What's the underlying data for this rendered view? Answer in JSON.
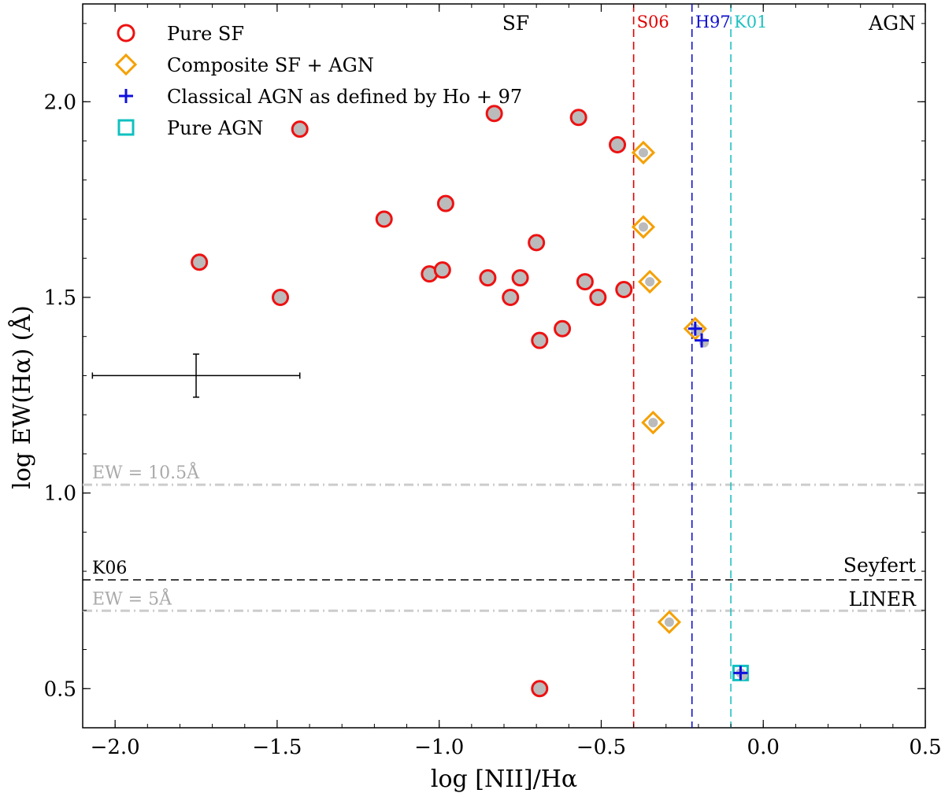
{
  "chart_data": {
    "type": "scatter",
    "xlabel": "log [NII]/Hα",
    "ylabel": "log EW(Hα) (Å)",
    "xlim": [
      -2.1,
      0.5
    ],
    "ylim": [
      0.4,
      2.25
    ],
    "xticks": [
      -2.0,
      -1.5,
      -1.0,
      -0.5,
      0.0,
      0.5
    ],
    "xtick_labels": [
      "−2.0",
      "−1.5",
      "−1.0",
      "−0.5",
      "0.0",
      "0.5"
    ],
    "yticks": [
      0.5,
      1.0,
      1.5,
      2.0
    ],
    "ytick_labels": [
      "0.5",
      "1.0",
      "1.5",
      "2.0"
    ],
    "grid": false,
    "legend": {
      "placement": "top-left",
      "entries": [
        {
          "label": "Pure SF",
          "marker": "circle",
          "color": "#ee1111"
        },
        {
          "label": "Composite SF + AGN",
          "marker": "diamond",
          "color": "#f5a000"
        },
        {
          "label": "Classical AGN as defined by Ho + 97",
          "marker": "plus",
          "color": "#1010dd"
        },
        {
          "label": "Pure AGN",
          "marker": "square",
          "color": "#10c0c0"
        }
      ]
    },
    "series": [
      {
        "name": "Pure SF",
        "marker": "circle",
        "points": [
          {
            "x": -1.43,
            "y": 1.93
          },
          {
            "x": -0.83,
            "y": 1.97
          },
          {
            "x": -0.57,
            "y": 1.96
          },
          {
            "x": -0.45,
            "y": 1.89
          },
          {
            "x": -0.98,
            "y": 1.74
          },
          {
            "x": -1.17,
            "y": 1.7
          },
          {
            "x": -0.7,
            "y": 1.64
          },
          {
            "x": -1.74,
            "y": 1.59
          },
          {
            "x": -1.03,
            "y": 1.56
          },
          {
            "x": -0.99,
            "y": 1.57
          },
          {
            "x": -0.85,
            "y": 1.55
          },
          {
            "x": -0.75,
            "y": 1.55
          },
          {
            "x": -0.55,
            "y": 1.54
          },
          {
            "x": -0.43,
            "y": 1.52
          },
          {
            "x": -0.51,
            "y": 1.5
          },
          {
            "x": -0.78,
            "y": 1.5
          },
          {
            "x": -1.49,
            "y": 1.5
          },
          {
            "x": -0.62,
            "y": 1.42
          },
          {
            "x": -0.69,
            "y": 1.39
          },
          {
            "x": -0.69,
            "y": 0.5
          }
        ]
      },
      {
        "name": "Composite SF + AGN",
        "marker": "diamond",
        "points": [
          {
            "x": -0.37,
            "y": 1.87
          },
          {
            "x": -0.37,
            "y": 1.68
          },
          {
            "x": -0.35,
            "y": 1.54
          },
          {
            "x": -0.21,
            "y": 1.42
          },
          {
            "x": -0.34,
            "y": 1.18
          },
          {
            "x": -0.29,
            "y": 0.67
          }
        ]
      },
      {
        "name": "Classical AGN as defined by Ho + 97",
        "marker": "plus",
        "points": [
          {
            "x": -0.21,
            "y": 1.42
          },
          {
            "x": -0.19,
            "y": 1.39
          },
          {
            "x": -0.07,
            "y": 0.54
          }
        ]
      },
      {
        "name": "Pure AGN",
        "marker": "square",
        "points": [
          {
            "x": -0.07,
            "y": 0.54
          }
        ]
      }
    ],
    "vertical_lines": [
      {
        "x": -0.4,
        "label": "S06",
        "color": "#e00000",
        "style": "dashed"
      },
      {
        "x": -0.22,
        "label": "H97",
        "color": "#1010cc",
        "style": "dashed"
      },
      {
        "x": -0.1,
        "label": "K01",
        "color": "#20c0c0",
        "style": "dashed"
      }
    ],
    "horizontal_lines": [
      {
        "y": 1.021,
        "label": "EW = 10.5Å",
        "color": "#cccccc",
        "style": "dash-dot"
      },
      {
        "y": 0.778,
        "label": "K06",
        "color": "#000000",
        "style": "dashed"
      },
      {
        "y": 0.699,
        "label": "EW = 5Å",
        "color": "#cccccc",
        "style": "dash-dot"
      }
    ],
    "region_labels": {
      "sf": "SF",
      "agn": "AGN",
      "seyfert": "Seyfert",
      "liner": "LINER"
    },
    "error_bar": {
      "x": -1.75,
      "y": 1.3,
      "xerr": 0.32,
      "yerr": 0.055
    },
    "colors": {
      "sf_edge": "#ee1111",
      "composite_edge": "#f5a000",
      "classical_agn": "#1010dd",
      "pure_agn_edge": "#10c0c0",
      "marker_fill": "#bbbbbb",
      "axis": "#000000"
    }
  }
}
